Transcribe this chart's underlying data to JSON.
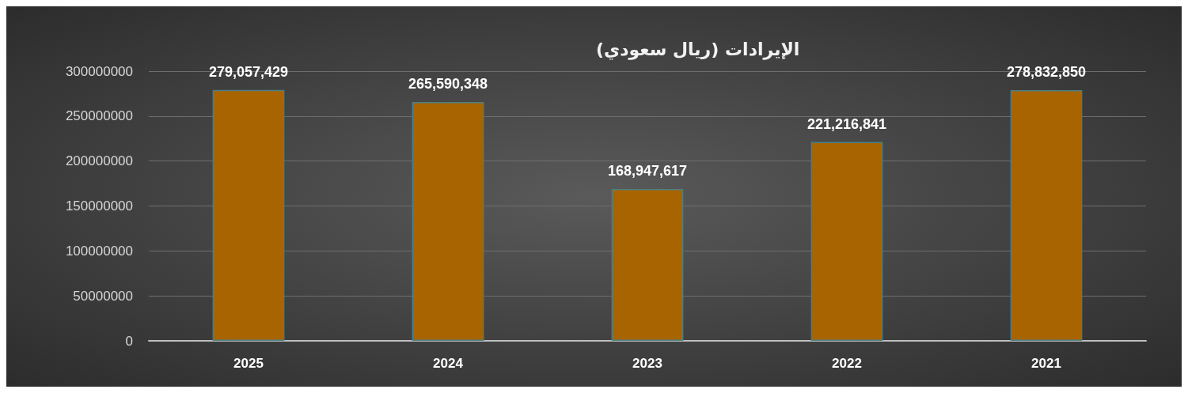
{
  "chart_data": {
    "type": "bar",
    "title": "الإيرادات (ريال سعودي)",
    "categories": [
      "2025",
      "2024",
      "2023",
      "2022",
      "2021"
    ],
    "values": [
      279057429,
      265590348,
      168947617,
      221216841,
      278832850
    ],
    "value_labels": [
      "279,057,429",
      "265,590,348",
      "168,947,617",
      "221,216,841",
      "278,832,850"
    ],
    "color": "#a86400",
    "ylim": [
      0,
      300000000
    ],
    "yticks": [
      0,
      50000000,
      100000000,
      150000000,
      200000000,
      250000000,
      300000000
    ],
    "grid": "y"
  }
}
